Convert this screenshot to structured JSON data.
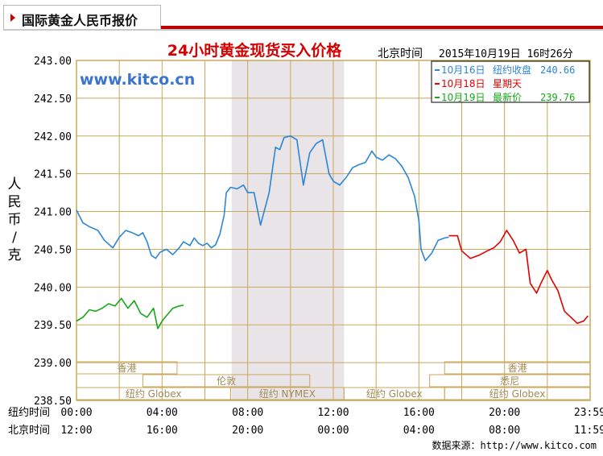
{
  "tab": {
    "title": "国际黄金人民币报价"
  },
  "source_text": "数据来源：http://www.kitco.com",
  "colors": {
    "frame": "#c8a85c",
    "grid": "#c8a85c",
    "plot_bg": "#ffffff",
    "closed_band": "#e8e4e8",
    "title": "#d40000",
    "yesterday": "#2b86d6",
    "holiday": "#e00000",
    "today": "#16a816",
    "watermark": "#3a74d0"
  },
  "chart_data": {
    "type": "line",
    "title": "24小时黄金现货买入价格",
    "watermark": "www.kitco.cn",
    "timestamp_label": "北京时间",
    "timestamp_value": "2015年10月19日 16时26分",
    "ylabel": "人民币/克",
    "ylim": [
      238.5,
      243.0
    ],
    "yticks": [
      "243.00",
      "242.50",
      "242.00",
      "241.50",
      "241.00",
      "240.50",
      "240.00",
      "239.50",
      "239.00",
      "238.50"
    ],
    "xlim": [
      0,
      24
    ],
    "row_labels": [
      "纽约时间",
      "北京时间"
    ],
    "ny_ticks": [
      "00:00",
      "04:00",
      "08:00",
      "12:00",
      "16:00",
      "20:00",
      "23:59"
    ],
    "bj_ticks": [
      "12:00",
      "16:00",
      "20:00",
      "00:00",
      "04:00",
      "08:00",
      "11:59"
    ],
    "tick_positions": [
      0,
      4,
      8,
      12,
      16,
      20,
      23.98
    ],
    "legend": [
      {
        "name": "10月16日",
        "label": "纽约收盘",
        "value": "240.66",
        "color": "#2b86d6"
      },
      {
        "name": "10月18日",
        "label": "星期天",
        "value": "",
        "color": "#e00000"
      },
      {
        "name": "10月19日",
        "label": "最新价",
        "value": "239.76",
        "color": "#16a816"
      }
    ],
    "closed_band": [
      7.25,
      12.5
    ],
    "sessions": [
      {
        "label": "香港",
        "row": 0,
        "start": 0,
        "end": 4.7
      },
      {
        "label": "香港",
        "row": 0,
        "start": 17.2,
        "end": 24
      },
      {
        "label": "伦敦",
        "row": 1,
        "start": 3.1,
        "end": 10.9
      },
      {
        "label": "悉尼",
        "row": 1,
        "start": 16.5,
        "end": 24
      },
      {
        "label": "纽约 Globex",
        "row": 2,
        "start": 0,
        "end": 7.2
      },
      {
        "label": "纽约 NYMEX",
        "row": 2,
        "start": 7.2,
        "end": 12.5
      },
      {
        "label": "纽约 Globex",
        "row": 2,
        "start": 12.5,
        "end": 17.2
      },
      {
        "label": "纽约 Globex",
        "row": 2,
        "start": 17.2,
        "end": 24
      }
    ],
    "series": [
      {
        "name": "10月16日",
        "color": "#2b86d6",
        "x": [
          0,
          0.3,
          0.6,
          1.0,
          1.3,
          1.7,
          2.0,
          2.3,
          2.6,
          2.9,
          3.1,
          3.3,
          3.5,
          3.7,
          3.9,
          4.2,
          4.5,
          4.8,
          5.0,
          5.3,
          5.5,
          5.7,
          5.9,
          6.1,
          6.3,
          6.5,
          6.7,
          6.9,
          7.0,
          7.2,
          7.5,
          7.8,
          8.0,
          8.3,
          8.6,
          9.0,
          9.3,
          9.5,
          9.7,
          10.0,
          10.3,
          10.6,
          10.9,
          11.2,
          11.5,
          11.8,
          12.0,
          12.3,
          12.6,
          12.9,
          13.2,
          13.5,
          13.8,
          14.0,
          14.3,
          14.6,
          14.9,
          15.2,
          15.5,
          15.8,
          16.0,
          16.1,
          16.3,
          16.6,
          16.9,
          17.2,
          17.4
        ],
        "values": [
          241.02,
          240.85,
          240.8,
          240.75,
          240.62,
          240.52,
          240.66,
          240.75,
          240.72,
          240.68,
          240.72,
          240.6,
          240.42,
          240.38,
          240.46,
          240.5,
          240.43,
          240.52,
          240.6,
          240.55,
          240.65,
          240.58,
          240.55,
          240.58,
          240.52,
          240.56,
          240.7,
          240.95,
          241.25,
          241.32,
          241.3,
          241.35,
          241.25,
          241.25,
          240.82,
          241.25,
          241.85,
          241.82,
          241.98,
          242.0,
          241.95,
          241.35,
          241.78,
          241.9,
          241.95,
          241.5,
          241.4,
          241.35,
          241.45,
          241.58,
          241.62,
          241.65,
          241.8,
          241.72,
          241.68,
          241.75,
          241.7,
          241.6,
          241.45,
          241.2,
          240.88,
          240.5,
          240.35,
          240.45,
          240.62,
          240.65,
          240.66
        ]
      },
      {
        "name": "10月18日",
        "color": "#e00000",
        "x": [
          17.4,
          17.6,
          17.8,
          18.0,
          18.4,
          18.8,
          19.2,
          19.5,
          19.8,
          20.1,
          20.4,
          20.7,
          21.0,
          21.2,
          21.5,
          21.7,
          22.0,
          22.2,
          22.5,
          22.8,
          23.1,
          23.4,
          23.7,
          23.9
        ],
        "values": [
          240.68,
          240.68,
          240.68,
          240.48,
          240.38,
          240.42,
          240.48,
          240.52,
          240.6,
          240.75,
          240.62,
          240.45,
          240.5,
          240.05,
          239.92,
          240.05,
          240.22,
          240.1,
          239.95,
          239.68,
          239.6,
          239.52,
          239.55,
          239.62
        ]
      },
      {
        "name": "10月19日",
        "color": "#16a816",
        "x": [
          0,
          0.3,
          0.6,
          0.9,
          1.2,
          1.5,
          1.8,
          2.1,
          2.4,
          2.7,
          3.0,
          3.3,
          3.6,
          3.8,
          4.0,
          4.2,
          4.5,
          4.8,
          5.0
        ],
        "values": [
          239.55,
          239.6,
          239.7,
          239.68,
          239.72,
          239.78,
          239.75,
          239.85,
          239.72,
          239.82,
          239.65,
          239.6,
          239.72,
          239.45,
          239.55,
          239.62,
          239.72,
          239.75,
          239.76
        ]
      }
    ]
  }
}
